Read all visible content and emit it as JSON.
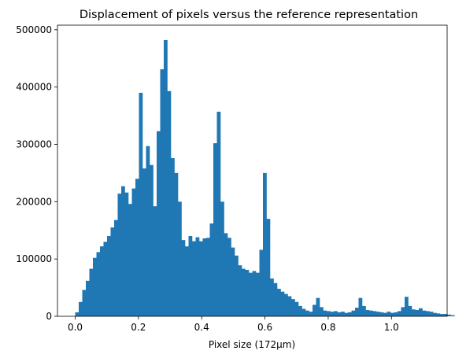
{
  "chart_data": {
    "type": "bar",
    "title": "Displacement of pixels versus the reference representation",
    "xlabel": "Pixel size (172µm)",
    "ylabel": "",
    "xlim": [
      -0.056,
      1.176
    ],
    "ylim": [
      0,
      508000
    ],
    "bin_start": 0.0,
    "bin_width": 0.0112,
    "x_ticks": [
      0.0,
      0.2,
      0.4,
      0.6,
      0.8,
      1.0
    ],
    "x_tick_labels": [
      "0.0",
      "0.2",
      "0.4",
      "0.6",
      "0.8",
      "1.0"
    ],
    "y_ticks": [
      0,
      100000,
      200000,
      300000,
      400000,
      500000
    ],
    "y_tick_labels": [
      "0",
      "100000",
      "200000",
      "300000",
      "400000",
      "500000"
    ],
    "bar_color": "#1f77b4",
    "grid": false,
    "legend": "none",
    "values": [
      7000,
      25000,
      46000,
      62000,
      83000,
      102000,
      112000,
      122000,
      130000,
      140000,
      155000,
      168000,
      214000,
      227000,
      216000,
      196000,
      223000,
      240000,
      390000,
      258000,
      297000,
      264000,
      192000,
      323000,
      431000,
      482000,
      393000,
      276000,
      250000,
      200000,
      133000,
      122000,
      140000,
      131000,
      138000,
      131000,
      136000,
      137000,
      162000,
      302000,
      357000,
      200000,
      145000,
      137000,
      120000,
      106000,
      89000,
      83000,
      81000,
      76000,
      79000,
      76000,
      116000,
      250000,
      170000,
      66000,
      58000,
      48000,
      43000,
      39000,
      35000,
      30000,
      25000,
      18000,
      13000,
      10000,
      8000,
      20000,
      32000,
      16000,
      10000,
      9000,
      8000,
      9000,
      7000,
      8000,
      6000,
      7000,
      10000,
      15000,
      32000,
      18000,
      11000,
      10000,
      9000,
      8000,
      7000,
      6000,
      8000,
      6000,
      7000,
      9000,
      16000,
      34000,
      18000,
      12000,
      11000,
      14000,
      10000,
      9000,
      8000,
      6000,
      5000,
      4000,
      4000,
      3000,
      2000,
      1000
    ]
  }
}
